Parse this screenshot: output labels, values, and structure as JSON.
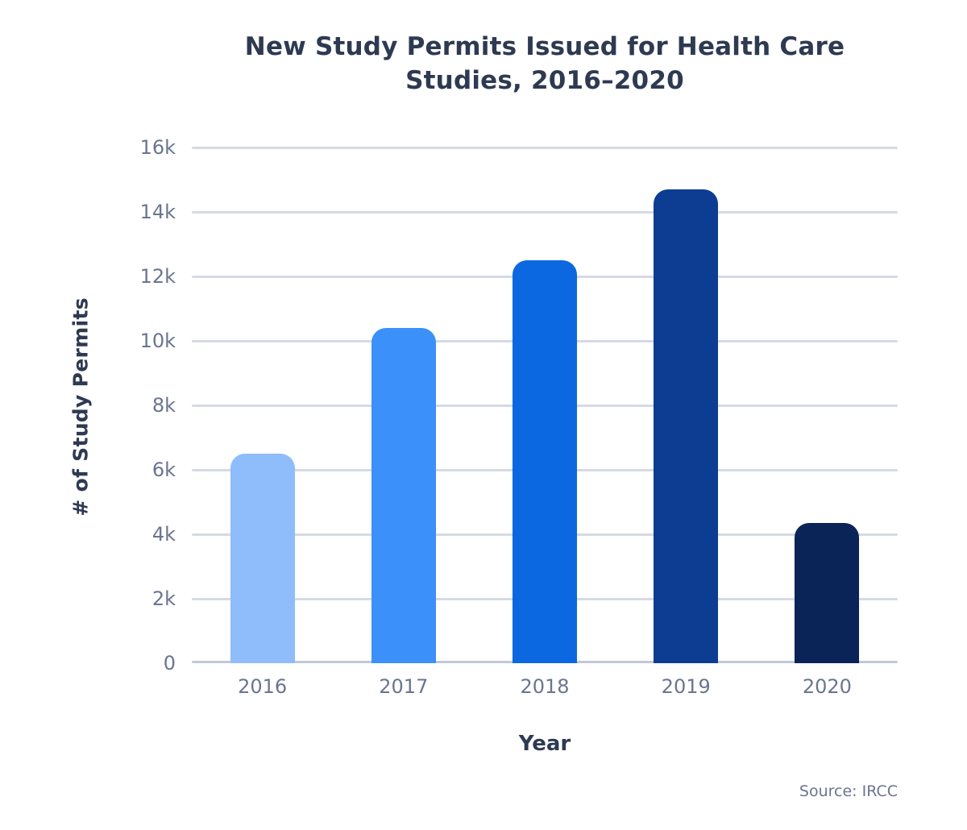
{
  "chart_data": {
    "type": "bar",
    "title": "New Study Permits Issued for Health Care Studies, 2016–2020",
    "title_lines": [
      "New Study Permits Issued for Health Care",
      "Studies, 2016–2020"
    ],
    "categories": [
      "2016",
      "2017",
      "2018",
      "2019",
      "2020"
    ],
    "values": [
      6500,
      10400,
      12500,
      14700,
      4350
    ],
    "bar_colors": [
      "#8fbcfa",
      "#3b90fa",
      "#0c68e0",
      "#0c3d92",
      "#0a2458"
    ],
    "xlabel": "Year",
    "ylabel": "# of Study Permits",
    "ylim": [
      0,
      16000
    ],
    "ytick_values": [
      0,
      2000,
      4000,
      6000,
      8000,
      10000,
      12000,
      14000,
      16000
    ],
    "ytick_labels": [
      "0",
      "2k",
      "4k",
      "6k",
      "8k",
      "10k",
      "12k",
      "14k",
      "16k"
    ],
    "grid": true,
    "legend_position": "none",
    "source": "Source: IRCC"
  },
  "colors": {
    "title_text": "#2e3a52",
    "tick_label_text": "#6a7590",
    "gridline": "#d5dae4",
    "baseline": "#c2c8d6",
    "background": "#ffffff"
  }
}
